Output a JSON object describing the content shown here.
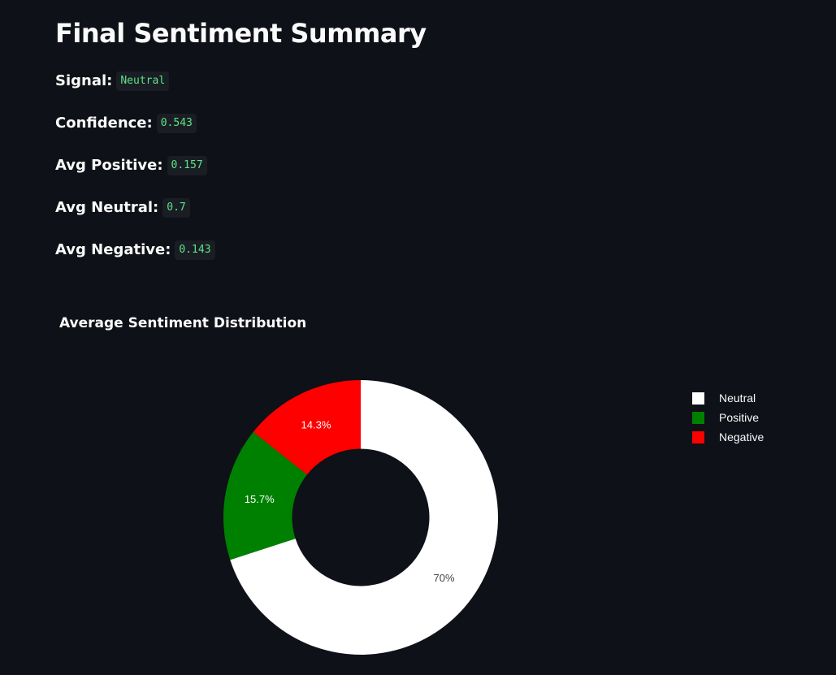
{
  "header": {
    "title": "Final Sentiment Summary"
  },
  "metrics": [
    {
      "label": "Signal:",
      "value": "Neutral"
    },
    {
      "label": "Confidence:",
      "value": "0.543"
    },
    {
      "label": "Avg Positive:",
      "value": "0.157"
    },
    {
      "label": "Avg Neutral:",
      "value": "0.7"
    },
    {
      "label": "Avg Negative:",
      "value": "0.143"
    }
  ],
  "chart_data": {
    "type": "pie",
    "title": "Average Sentiment Distribution",
    "hole": 0.5,
    "labels": [
      "Neutral",
      "Positive",
      "Negative"
    ],
    "values": [
      0.7,
      0.157,
      0.143
    ],
    "percent_labels": [
      "70%",
      "15.7%",
      "14.3%"
    ],
    "colors": [
      "#ffffff",
      "#008000",
      "#ff0000"
    ],
    "label_colors": [
      "#444444",
      "#ffffff",
      "#ffffff"
    ],
    "legend": {
      "position": "right",
      "items": [
        "Neutral",
        "Positive",
        "Negative"
      ]
    }
  }
}
